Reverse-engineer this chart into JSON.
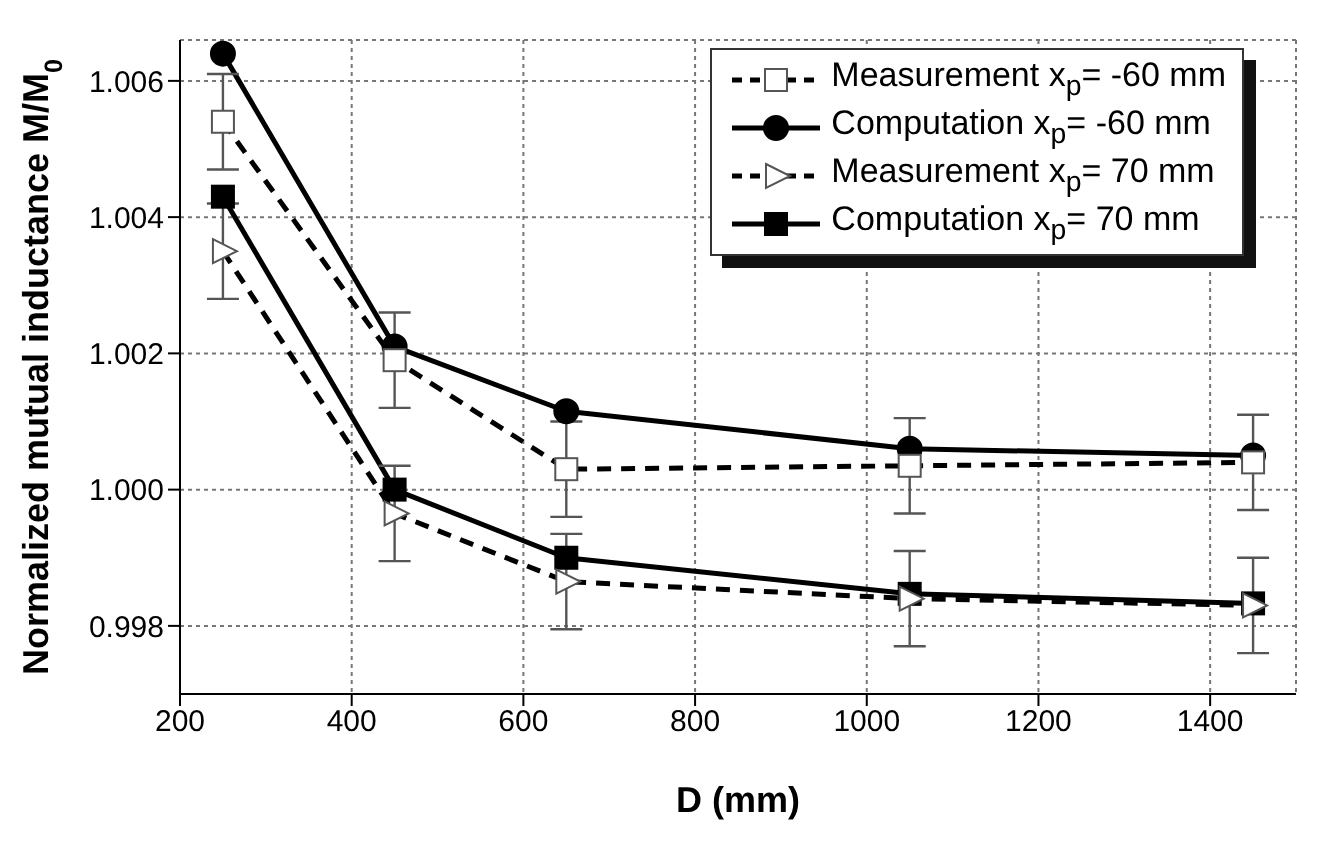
{
  "chart_data": {
    "type": "line",
    "xlabel": "D (mm)",
    "ylabel": "Normalized mutual inductance M/M$_{0}$",
    "x": [
      250,
      450,
      650,
      1050,
      1450
    ],
    "series": [
      {
        "name": "Measurement x$_{p}$= -60 mm",
        "color": "#000000",
        "marker": "square",
        "line_style": "dashed",
        "values": [
          1.0054,
          1.0019,
          1.0003,
          1.00035,
          1.0004
        ],
        "errors": [
          0.0007,
          0.0007,
          0.0007,
          0.0007,
          0.0007
        ]
      },
      {
        "name": "Computation x$_{p}$= -60 mm",
        "color": "#000000",
        "marker": "circle",
        "line_style": "solid",
        "values": [
          1.0064,
          1.0021,
          1.00115,
          1.0006,
          1.0005
        ]
      },
      {
        "name": "Measurement x$_{p}$= 70 mm",
        "color": "#000000",
        "marker": "triangle",
        "line_style": "dashed",
        "values": [
          1.0035,
          0.99965,
          0.99865,
          0.9984,
          0.9983
        ],
        "errors": [
          0.0007,
          0.0007,
          0.0007,
          0.0007,
          0.0007
        ]
      },
      {
        "name": "Computation x$_{p}$= 70 mm",
        "color": "#000000",
        "marker": "square",
        "line_style": "solid",
        "values": [
          1.0043,
          1.0,
          0.999,
          0.99847,
          0.99833
        ]
      }
    ],
    "xlim": [
      200,
      1500
    ],
    "xticks": [
      200,
      400,
      600,
      800,
      1000,
      1200,
      1400
    ],
    "ylim": [
      0.997,
      1.0066
    ],
    "yticks": [
      {
        "value": 0.998,
        "label": "0.998"
      },
      {
        "value": 1.0,
        "label": "1.000"
      },
      {
        "value": 1.002,
        "label": "1.002"
      },
      {
        "value": 1.004,
        "label": "1.004"
      },
      {
        "value": 1.006,
        "label": "1.006"
      }
    ],
    "grid": true,
    "legend": "top right"
  }
}
